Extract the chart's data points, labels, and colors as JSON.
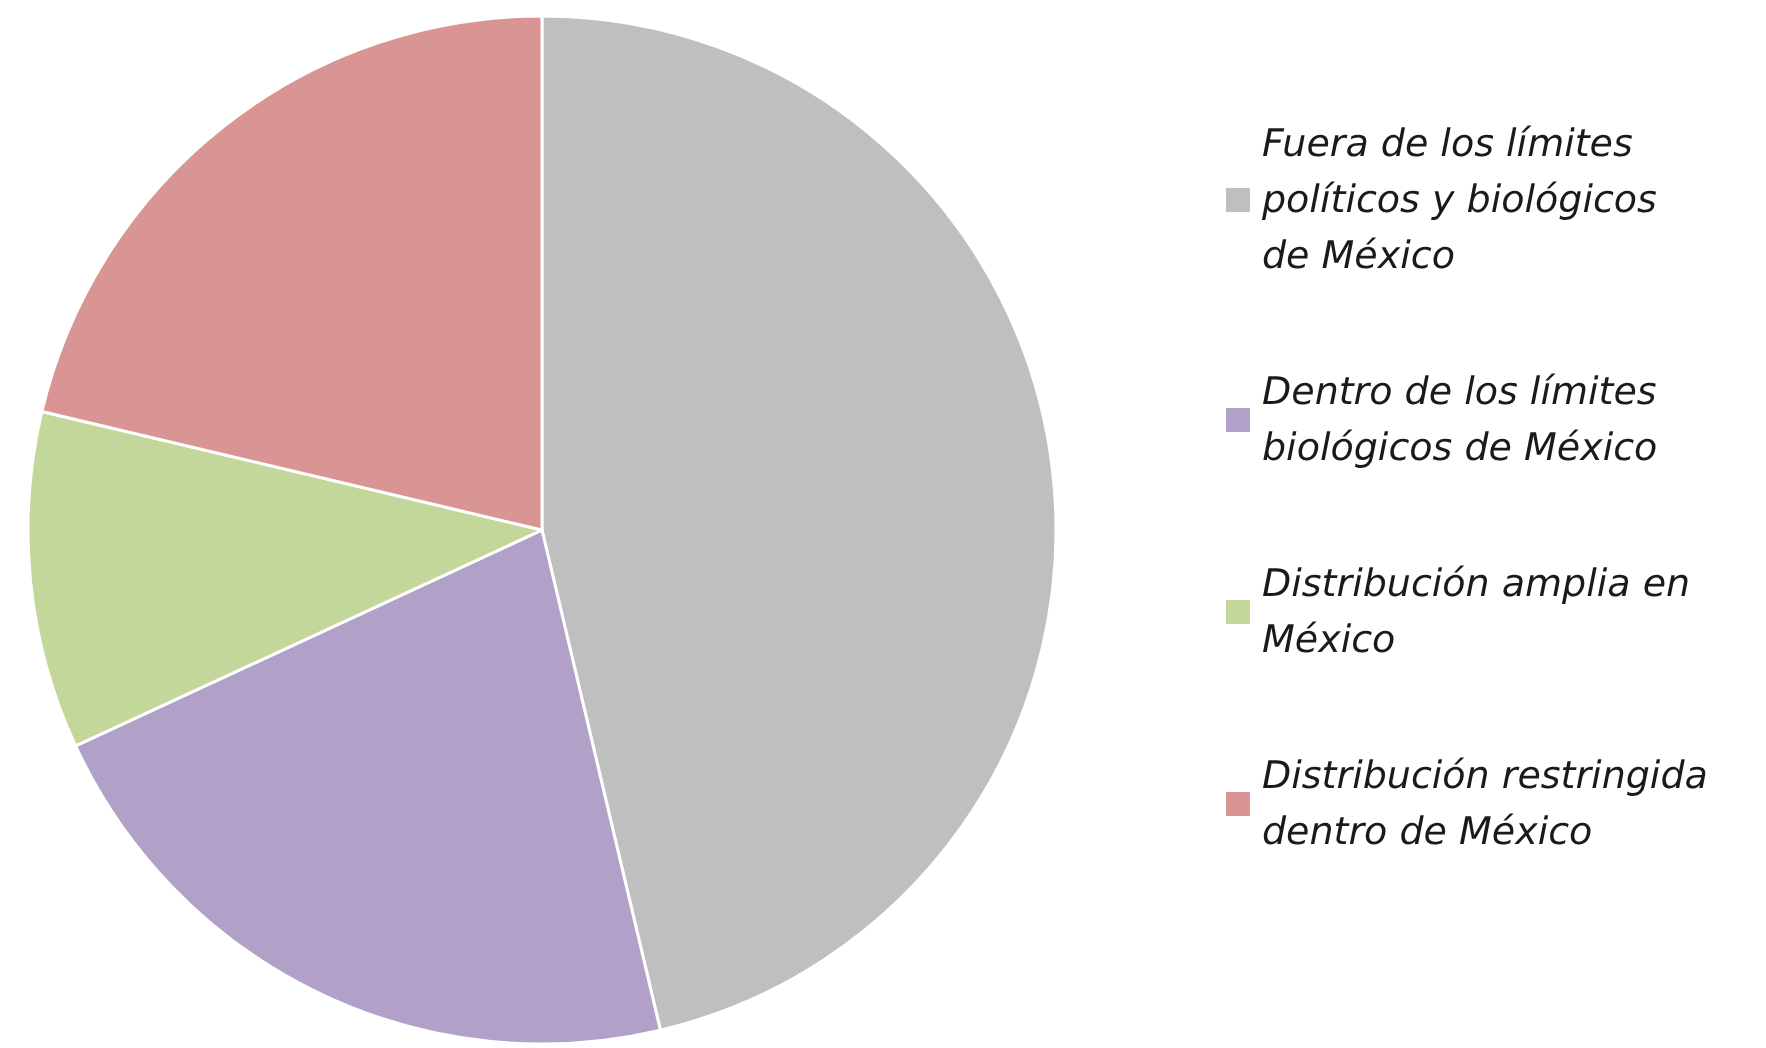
{
  "chart_data": {
    "type": "pie",
    "categories": [
      "Fuera de los límites políticos y biológicos de México",
      "Dentro de los límites biológicos de México",
      "Distribución amplia en México",
      "Distribución restringida dentro de México"
    ],
    "values": [
      46.3,
      21.8,
      10.6,
      21.3
    ],
    "colors": [
      "#bfbfbf",
      "#b1a0c7",
      "#c4d79b",
      "#d99594"
    ],
    "legend": "right"
  }
}
